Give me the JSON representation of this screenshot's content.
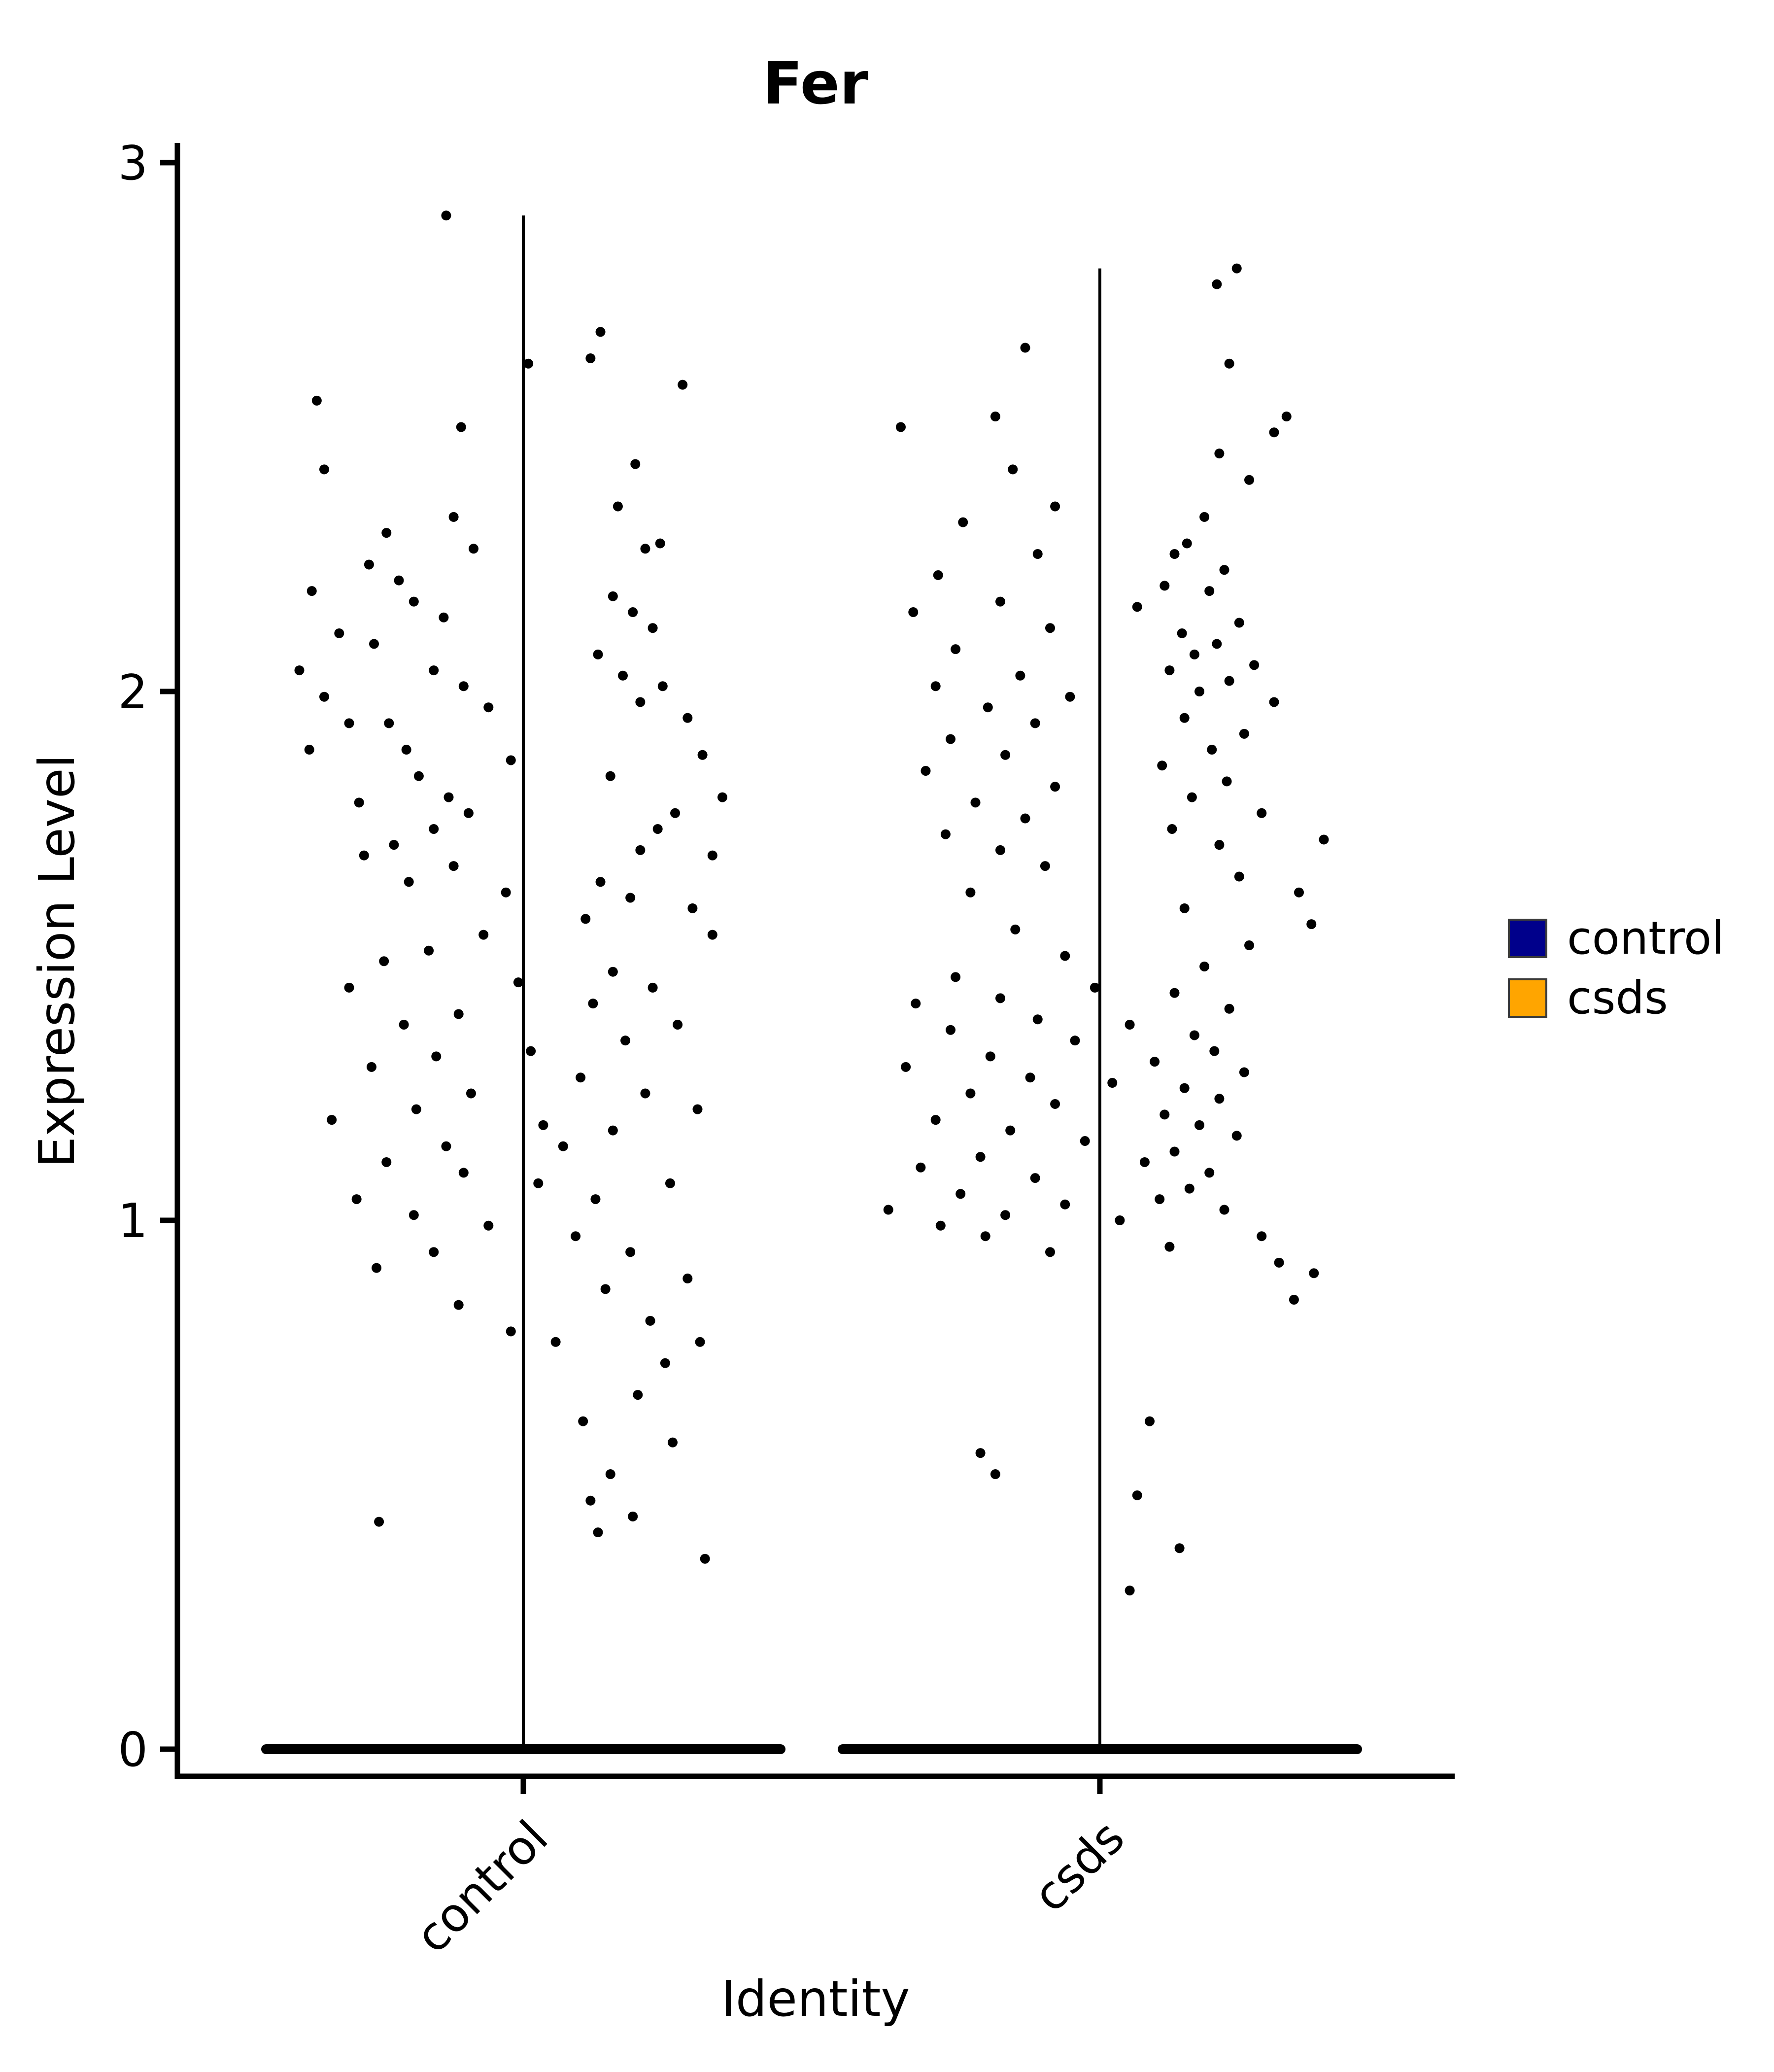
{
  "title": "Fer",
  "axes": {
    "x_label": "Identity",
    "y_label": "Expression Level"
  },
  "legend": {
    "items": [
      {
        "label": "control",
        "color": "#00008B"
      },
      {
        "label": "csds",
        "color": "#FFA500"
      }
    ]
  },
  "style": {
    "point_color": "#000000",
    "axis_color": "#000000",
    "stem_color": "#000000",
    "zero_band_color": "#000000"
  },
  "chart_data": {
    "type": "scatter",
    "subtype": "violin-jitter-expression",
    "title": "Fer",
    "xlabel": "Identity",
    "ylabel": "Expression Level",
    "ylim": [
      0,
      3
    ],
    "y_ticks": [
      0,
      1,
      2,
      3
    ],
    "categories": [
      "control",
      "csds"
    ],
    "legend_position": "right",
    "grid": false,
    "groups": [
      {
        "name": "control",
        "stem_max": 2.9,
        "zero_band": true,
        "zero_value": 0,
        "points": [
          [
            -0.31,
            2.9
          ],
          [
            0.02,
            2.62
          ],
          [
            0.31,
            2.68
          ],
          [
            0.27,
            2.63
          ],
          [
            -0.83,
            2.55
          ],
          [
            0.64,
            2.58
          ],
          [
            -0.25,
            2.5
          ],
          [
            0.45,
            2.43
          ],
          [
            -0.8,
            2.42
          ],
          [
            0.38,
            2.35
          ],
          [
            -0.28,
            2.33
          ],
          [
            -0.55,
            2.3
          ],
          [
            0.55,
            2.28
          ],
          [
            0.49,
            2.27
          ],
          [
            -0.2,
            2.27
          ],
          [
            -0.62,
            2.24
          ],
          [
            -0.5,
            2.21
          ],
          [
            -0.85,
            2.19
          ],
          [
            0.36,
            2.18
          ],
          [
            -0.44,
            2.17
          ],
          [
            0.44,
            2.15
          ],
          [
            -0.32,
            2.14
          ],
          [
            -0.74,
            2.11
          ],
          [
            0.52,
            2.12
          ],
          [
            -0.6,
            2.09
          ],
          [
            0.3,
            2.07
          ],
          [
            -0.9,
            2.04
          ],
          [
            0.4,
            2.03
          ],
          [
            -0.36,
            2.04
          ],
          [
            0.56,
            2.01
          ],
          [
            -0.8,
            1.99
          ],
          [
            -0.24,
            2.01
          ],
          [
            -0.14,
            1.97
          ],
          [
            0.47,
            1.98
          ],
          [
            0.66,
            1.95
          ],
          [
            -0.7,
            1.94
          ],
          [
            -0.54,
            1.94
          ],
          [
            -0.86,
            1.89
          ],
          [
            -0.47,
            1.89
          ],
          [
            0.72,
            1.88
          ],
          [
            -0.05,
            1.87
          ],
          [
            0.35,
            1.84
          ],
          [
            -0.42,
            1.84
          ],
          [
            0.8,
            1.8
          ],
          [
            -0.3,
            1.8
          ],
          [
            -0.66,
            1.79
          ],
          [
            0.61,
            1.77
          ],
          [
            -0.22,
            1.77
          ],
          [
            -0.36,
            1.74
          ],
          [
            0.54,
            1.74
          ],
          [
            -0.52,
            1.71
          ],
          [
            0.47,
            1.7
          ],
          [
            -0.64,
            1.69
          ],
          [
            -0.28,
            1.67
          ],
          [
            0.76,
            1.69
          ],
          [
            0.31,
            1.64
          ],
          [
            -0.46,
            1.64
          ],
          [
            0.43,
            1.61
          ],
          [
            -0.07,
            1.62
          ],
          [
            0.25,
            1.57
          ],
          [
            0.68,
            1.59
          ],
          [
            -0.16,
            1.54
          ],
          [
            0.76,
            1.54
          ],
          [
            -0.38,
            1.51
          ],
          [
            -0.56,
            1.49
          ],
          [
            0.36,
            1.47
          ],
          [
            -0.02,
            1.45
          ],
          [
            0.52,
            1.44
          ],
          [
            -0.7,
            1.44
          ],
          [
            0.28,
            1.41
          ],
          [
            -0.26,
            1.39
          ],
          [
            -0.48,
            1.37
          ],
          [
            0.62,
            1.37
          ],
          [
            0.41,
            1.34
          ],
          [
            0.03,
            1.32
          ],
          [
            -0.35,
            1.31
          ],
          [
            -0.61,
            1.29
          ],
          [
            0.23,
            1.27
          ],
          [
            0.49,
            1.24
          ],
          [
            -0.21,
            1.24
          ],
          [
            -0.43,
            1.21
          ],
          [
            -0.77,
            1.19
          ],
          [
            0.7,
            1.21
          ],
          [
            0.36,
            1.17
          ],
          [
            0.08,
            1.18
          ],
          [
            0.16,
            1.14
          ],
          [
            -0.31,
            1.14
          ],
          [
            -0.55,
            1.11
          ],
          [
            -0.24,
            1.09
          ],
          [
            0.06,
            1.07
          ],
          [
            0.59,
            1.07
          ],
          [
            0.29,
            1.04
          ],
          [
            -0.67,
            1.04
          ],
          [
            -0.44,
            1.01
          ],
          [
            -0.14,
            0.99
          ],
          [
            0.21,
            0.97
          ],
          [
            -0.36,
            0.94
          ],
          [
            0.43,
            0.94
          ],
          [
            -0.59,
            0.91
          ],
          [
            0.66,
            0.89
          ],
          [
            0.33,
            0.87
          ],
          [
            -0.26,
            0.84
          ],
          [
            0.51,
            0.81
          ],
          [
            0.13,
            0.77
          ],
          [
            -0.05,
            0.79
          ],
          [
            0.71,
            0.77
          ],
          [
            0.57,
            0.73
          ],
          [
            0.46,
            0.67
          ],
          [
            0.24,
            0.62
          ],
          [
            0.6,
            0.58
          ],
          [
            0.35,
            0.52
          ],
          [
            0.27,
            0.47
          ],
          [
            0.44,
            0.44
          ],
          [
            -0.58,
            0.43
          ],
          [
            0.3,
            0.41
          ],
          [
            0.73,
            0.36
          ]
        ]
      },
      {
        "name": "csds",
        "stem_max": 2.8,
        "zero_band": true,
        "zero_value": 0,
        "points": [
          [
            0.55,
            2.8
          ],
          [
            0.47,
            2.77
          ],
          [
            -0.3,
            2.65
          ],
          [
            0.52,
            2.62
          ],
          [
            -0.42,
            2.52
          ],
          [
            0.75,
            2.52
          ],
          [
            0.7,
            2.49
          ],
          [
            -0.8,
            2.5
          ],
          [
            0.48,
            2.45
          ],
          [
            -0.35,
            2.42
          ],
          [
            0.6,
            2.4
          ],
          [
            -0.18,
            2.35
          ],
          [
            0.42,
            2.33
          ],
          [
            -0.55,
            2.32
          ],
          [
            0.35,
            2.28
          ],
          [
            0.3,
            2.26
          ],
          [
            -0.25,
            2.26
          ],
          [
            0.5,
            2.23
          ],
          [
            -0.65,
            2.22
          ],
          [
            0.26,
            2.2
          ],
          [
            0.44,
            2.19
          ],
          [
            -0.4,
            2.17
          ],
          [
            0.15,
            2.16
          ],
          [
            -0.75,
            2.15
          ],
          [
            0.56,
            2.13
          ],
          [
            0.33,
            2.11
          ],
          [
            -0.2,
            2.12
          ],
          [
            0.47,
            2.09
          ],
          [
            0.38,
            2.07
          ],
          [
            -0.58,
            2.08
          ],
          [
            0.62,
            2.05
          ],
          [
            0.28,
            2.04
          ],
          [
            -0.32,
            2.03
          ],
          [
            0.52,
            2.02
          ],
          [
            -0.66,
            2.01
          ],
          [
            0.4,
            2.0
          ],
          [
            -0.12,
            1.99
          ],
          [
            0.7,
            1.98
          ],
          [
            -0.45,
            1.97
          ],
          [
            0.34,
            1.95
          ],
          [
            -0.26,
            1.94
          ],
          [
            0.58,
            1.92
          ],
          [
            -0.6,
            1.91
          ],
          [
            0.45,
            1.89
          ],
          [
            -0.38,
            1.88
          ],
          [
            0.25,
            1.86
          ],
          [
            -0.7,
            1.85
          ],
          [
            0.51,
            1.83
          ],
          [
            -0.18,
            1.82
          ],
          [
            0.37,
            1.8
          ],
          [
            -0.5,
            1.79
          ],
          [
            0.65,
            1.77
          ],
          [
            -0.3,
            1.76
          ],
          [
            0.29,
            1.74
          ],
          [
            -0.62,
            1.73
          ],
          [
            0.48,
            1.71
          ],
          [
            -0.4,
            1.7
          ],
          [
            0.9,
            1.72
          ],
          [
            -0.22,
            1.67
          ],
          [
            0.56,
            1.65
          ],
          [
            0.8,
            1.62
          ],
          [
            -0.52,
            1.62
          ],
          [
            0.34,
            1.59
          ],
          [
            0.85,
            1.56
          ],
          [
            -0.34,
            1.55
          ],
          [
            0.6,
            1.52
          ],
          [
            -0.14,
            1.5
          ],
          [
            0.42,
            1.48
          ],
          [
            -0.58,
            1.46
          ],
          [
            -0.02,
            1.44
          ],
          [
            0.3,
            1.43
          ],
          [
            -0.4,
            1.42
          ],
          [
            -0.74,
            1.41
          ],
          [
            0.52,
            1.4
          ],
          [
            -0.25,
            1.38
          ],
          [
            0.12,
            1.37
          ],
          [
            -0.6,
            1.36
          ],
          [
            0.38,
            1.35
          ],
          [
            -0.1,
            1.34
          ],
          [
            0.46,
            1.32
          ],
          [
            -0.44,
            1.31
          ],
          [
            0.22,
            1.3
          ],
          [
            -0.78,
            1.29
          ],
          [
            0.58,
            1.28
          ],
          [
            -0.28,
            1.27
          ],
          [
            0.05,
            1.26
          ],
          [
            0.34,
            1.25
          ],
          [
            -0.52,
            1.24
          ],
          [
            0.48,
            1.23
          ],
          [
            -0.18,
            1.22
          ],
          [
            0.26,
            1.2
          ],
          [
            -0.66,
            1.19
          ],
          [
            0.4,
            1.18
          ],
          [
            -0.36,
            1.17
          ],
          [
            0.55,
            1.16
          ],
          [
            -0.06,
            1.15
          ],
          [
            0.3,
            1.13
          ],
          [
            -0.48,
            1.12
          ],
          [
            0.18,
            1.11
          ],
          [
            -0.72,
            1.1
          ],
          [
            0.44,
            1.09
          ],
          [
            -0.26,
            1.08
          ],
          [
            0.36,
            1.06
          ],
          [
            -0.56,
            1.05
          ],
          [
            0.24,
            1.04
          ],
          [
            -0.14,
            1.03
          ],
          [
            0.5,
            1.02
          ],
          [
            -0.38,
            1.01
          ],
          [
            0.08,
            1.0
          ],
          [
            -0.64,
            0.99
          ],
          [
            -0.85,
            1.02
          ],
          [
            0.65,
            0.97
          ],
          [
            -0.46,
            0.97
          ],
          [
            0.28,
            0.95
          ],
          [
            -0.2,
            0.94
          ],
          [
            0.72,
            0.92
          ],
          [
            0.86,
            0.9
          ],
          [
            0.78,
            0.85
          ],
          [
            0.2,
            0.62
          ],
          [
            -0.48,
            0.56
          ],
          [
            -0.42,
            0.52
          ],
          [
            0.15,
            0.48
          ],
          [
            0.32,
            0.38
          ],
          [
            0.12,
            0.3
          ]
        ]
      }
    ]
  }
}
